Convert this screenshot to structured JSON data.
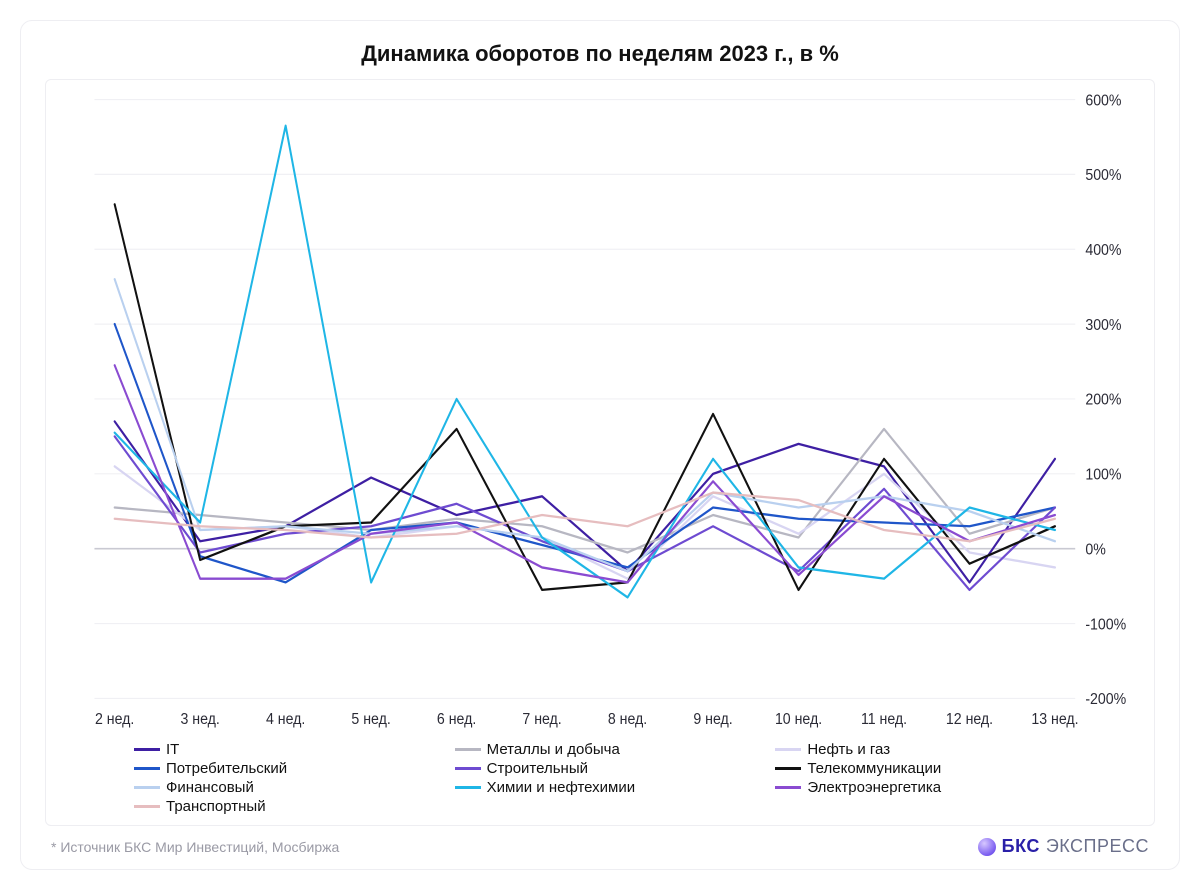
{
  "title": "Динамика оборотов по неделям 2023 г., в %",
  "footer_source": "*  Источник БКС Мир Инвестиций, Мосбиржа",
  "brand": {
    "bks": "БКС",
    "express": "ЭКСПРЕСС"
  },
  "chart": {
    "type": "line",
    "background_color": "#ffffff",
    "border_color": "#eeeef2",
    "grid_color": "#f0f0f4",
    "zero_line_color": "#c9c9d2",
    "axis_text_color": "#2a2a35",
    "axis_fontsize": 14,
    "title_fontsize": 22,
    "line_width": 2,
    "x_categories": [
      "2 нед.",
      "3 нед.",
      "4 нед.",
      "5 нед.",
      "6 нед.",
      "7 нед.",
      "8 нед.",
      "9 нед.",
      "10 нед.",
      "11 нед.",
      "12 нед.",
      "13 нед."
    ],
    "ylim": [
      -200,
      600
    ],
    "ytick_step": 100,
    "y_suffix": "%",
    "y_axis_side": "right",
    "series": [
      {
        "name": "IT",
        "color": "#3e1fa3",
        "values": [
          170,
          10,
          30,
          95,
          45,
          70,
          -30,
          100,
          140,
          110,
          -45,
          120
        ]
      },
      {
        "name": "Металлы и добыча",
        "color": "#b7b7c2",
        "values": [
          55,
          45,
          35,
          25,
          40,
          30,
          -5,
          45,
          15,
          160,
          20,
          55
        ]
      },
      {
        "name": "Нефть и газ",
        "color": "#d8d5f2",
        "values": [
          110,
          25,
          30,
          15,
          30,
          15,
          -40,
          70,
          20,
          100,
          -5,
          -25
        ]
      },
      {
        "name": "Потребительский",
        "color": "#1f56c9",
        "values": [
          300,
          -10,
          -45,
          25,
          35,
          5,
          -25,
          55,
          40,
          35,
          30,
          55
        ]
      },
      {
        "name": "Строительный",
        "color": "#6e4bd1",
        "values": [
          150,
          -5,
          20,
          30,
          60,
          10,
          -30,
          30,
          -30,
          80,
          -55,
          55
        ]
      },
      {
        "name": "Телекоммуникации",
        "color": "#111111",
        "values": [
          460,
          -15,
          30,
          35,
          160,
          -55,
          -45,
          180,
          -55,
          120,
          -20,
          30
        ]
      },
      {
        "name": "Финансовый",
        "color": "#b9d0ef",
        "values": [
          360,
          25,
          30,
          20,
          30,
          15,
          -30,
          75,
          55,
          70,
          50,
          10
        ]
      },
      {
        "name": "Химии и нефтехимии",
        "color": "#1fb6e6",
        "values": [
          155,
          35,
          565,
          -45,
          200,
          15,
          -65,
          120,
          -25,
          -40,
          55,
          25
        ]
      },
      {
        "name": "Электроэнергетика",
        "color": "#8a4bd1",
        "values": [
          245,
          -40,
          -40,
          20,
          35,
          -25,
          -45,
          90,
          -35,
          70,
          10,
          45
        ]
      },
      {
        "name": "Транспортный",
        "color": "#e6bdbf",
        "values": [
          40,
          30,
          25,
          15,
          20,
          45,
          30,
          75,
          65,
          25,
          10,
          40
        ]
      }
    ]
  }
}
